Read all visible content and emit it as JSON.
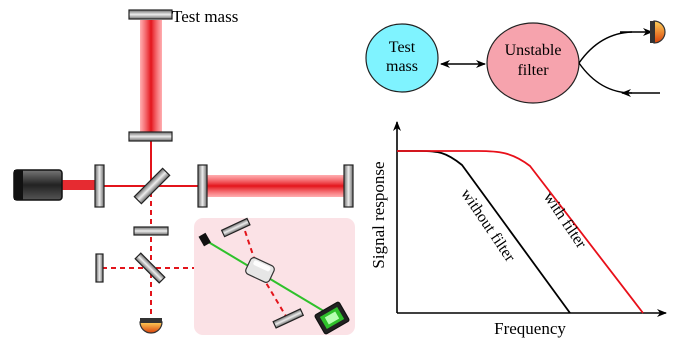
{
  "labels": {
    "test_mass_top": "Test mass",
    "bubble_test_mass_line1": "Test",
    "bubble_test_mass_line2": "mass",
    "bubble_filter_line1": "Unstable",
    "bubble_filter_line2": "filter"
  },
  "chart_data": {
    "type": "line",
    "xlabel": "Frequency",
    "ylabel": "Signal response",
    "series": [
      {
        "name": "without filter",
        "color": "#000000"
      },
      {
        "name": "with filter",
        "color": "#e8101a"
      }
    ]
  },
  "colors": {
    "laser_red": "#e3141b",
    "bubble_test_mass": "#7ff3ff",
    "bubble_filter": "#f6a3ad",
    "inset_panel": "#fbe2e6",
    "green_beam": "#2fc12b",
    "photodetector": "#e06a0a"
  }
}
